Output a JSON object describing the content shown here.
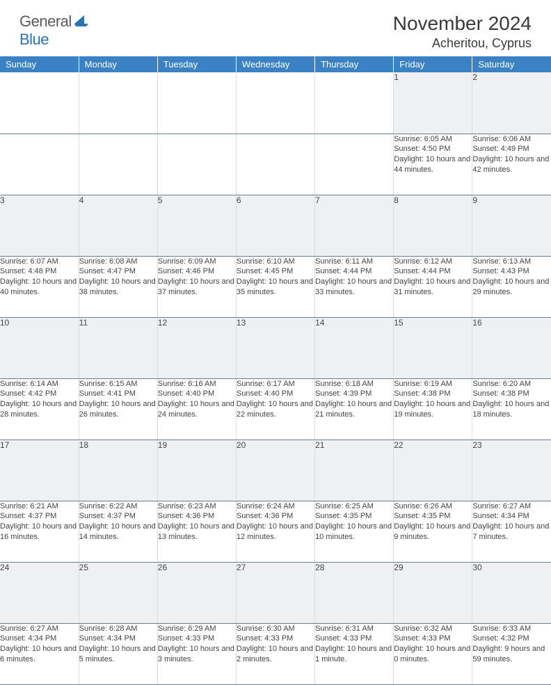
{
  "brand": {
    "text_gray": "General",
    "text_blue": "Blue"
  },
  "title": "November 2024",
  "location": "Acheritou, Cyprus",
  "day_headers": [
    "Sunday",
    "Monday",
    "Tuesday",
    "Wednesday",
    "Thursday",
    "Friday",
    "Saturday"
  ],
  "colors": {
    "header_bg": "#3b82c4",
    "header_text": "#ffffff",
    "daynum_bg": "#eef0f2",
    "row_divider": "#6b7c8c",
    "cell_divider": "#d8dde2",
    "text": "#444444",
    "logo_gray": "#5a5a5a",
    "logo_blue": "#2b73b5"
  },
  "weeks": [
    [
      null,
      null,
      null,
      null,
      null,
      {
        "n": "1",
        "sr": "6:05 AM",
        "ss": "4:50 PM",
        "dl": "10 hours and 44 minutes."
      },
      {
        "n": "2",
        "sr": "6:06 AM",
        "ss": "4:49 PM",
        "dl": "10 hours and 42 minutes."
      }
    ],
    [
      {
        "n": "3",
        "sr": "6:07 AM",
        "ss": "4:48 PM",
        "dl": "10 hours and 40 minutes."
      },
      {
        "n": "4",
        "sr": "6:08 AM",
        "ss": "4:47 PM",
        "dl": "10 hours and 38 minutes."
      },
      {
        "n": "5",
        "sr": "6:09 AM",
        "ss": "4:46 PM",
        "dl": "10 hours and 37 minutes."
      },
      {
        "n": "6",
        "sr": "6:10 AM",
        "ss": "4:45 PM",
        "dl": "10 hours and 35 minutes."
      },
      {
        "n": "7",
        "sr": "6:11 AM",
        "ss": "4:44 PM",
        "dl": "10 hours and 33 minutes."
      },
      {
        "n": "8",
        "sr": "6:12 AM",
        "ss": "4:44 PM",
        "dl": "10 hours and 31 minutes."
      },
      {
        "n": "9",
        "sr": "6:13 AM",
        "ss": "4:43 PM",
        "dl": "10 hours and 29 minutes."
      }
    ],
    [
      {
        "n": "10",
        "sr": "6:14 AM",
        "ss": "4:42 PM",
        "dl": "10 hours and 28 minutes."
      },
      {
        "n": "11",
        "sr": "6:15 AM",
        "ss": "4:41 PM",
        "dl": "10 hours and 26 minutes."
      },
      {
        "n": "12",
        "sr": "6:16 AM",
        "ss": "4:40 PM",
        "dl": "10 hours and 24 minutes."
      },
      {
        "n": "13",
        "sr": "6:17 AM",
        "ss": "4:40 PM",
        "dl": "10 hours and 22 minutes."
      },
      {
        "n": "14",
        "sr": "6:18 AM",
        "ss": "4:39 PM",
        "dl": "10 hours and 21 minutes."
      },
      {
        "n": "15",
        "sr": "6:19 AM",
        "ss": "4:38 PM",
        "dl": "10 hours and 19 minutes."
      },
      {
        "n": "16",
        "sr": "6:20 AM",
        "ss": "4:38 PM",
        "dl": "10 hours and 18 minutes."
      }
    ],
    [
      {
        "n": "17",
        "sr": "6:21 AM",
        "ss": "4:37 PM",
        "dl": "10 hours and 16 minutes."
      },
      {
        "n": "18",
        "sr": "6:22 AM",
        "ss": "4:37 PM",
        "dl": "10 hours and 14 minutes."
      },
      {
        "n": "19",
        "sr": "6:23 AM",
        "ss": "4:36 PM",
        "dl": "10 hours and 13 minutes."
      },
      {
        "n": "20",
        "sr": "6:24 AM",
        "ss": "4:36 PM",
        "dl": "10 hours and 12 minutes."
      },
      {
        "n": "21",
        "sr": "6:25 AM",
        "ss": "4:35 PM",
        "dl": "10 hours and 10 minutes."
      },
      {
        "n": "22",
        "sr": "6:26 AM",
        "ss": "4:35 PM",
        "dl": "10 hours and 9 minutes."
      },
      {
        "n": "23",
        "sr": "6:27 AM",
        "ss": "4:34 PM",
        "dl": "10 hours and 7 minutes."
      }
    ],
    [
      {
        "n": "24",
        "sr": "6:27 AM",
        "ss": "4:34 PM",
        "dl": "10 hours and 6 minutes."
      },
      {
        "n": "25",
        "sr": "6:28 AM",
        "ss": "4:34 PM",
        "dl": "10 hours and 5 minutes."
      },
      {
        "n": "26",
        "sr": "6:29 AM",
        "ss": "4:33 PM",
        "dl": "10 hours and 3 minutes."
      },
      {
        "n": "27",
        "sr": "6:30 AM",
        "ss": "4:33 PM",
        "dl": "10 hours and 2 minutes."
      },
      {
        "n": "28",
        "sr": "6:31 AM",
        "ss": "4:33 PM",
        "dl": "10 hours and 1 minute."
      },
      {
        "n": "29",
        "sr": "6:32 AM",
        "ss": "4:33 PM",
        "dl": "10 hours and 0 minutes."
      },
      {
        "n": "30",
        "sr": "6:33 AM",
        "ss": "4:32 PM",
        "dl": "9 hours and 59 minutes."
      }
    ]
  ],
  "labels": {
    "sunrise": "Sunrise: ",
    "sunset": "Sunset: ",
    "daylight": "Daylight: "
  }
}
